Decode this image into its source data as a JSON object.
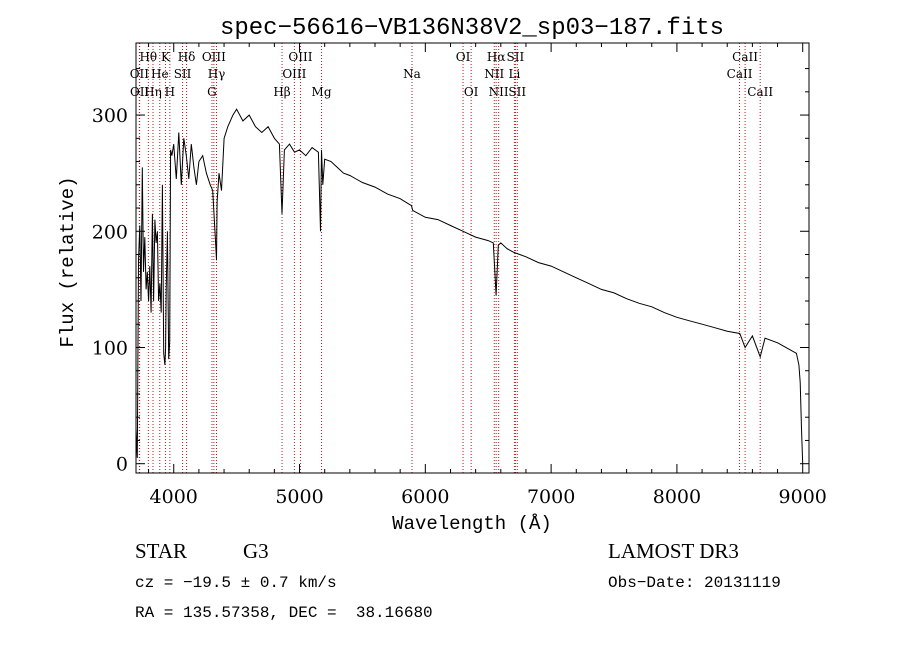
{
  "chart_data": {
    "type": "line",
    "title": "spec−56616−VB136N38V2_sp03−187.fits",
    "xlabel": "Wavelength (Å)",
    "ylabel": "Flux (relative)",
    "xlim": [
      3700,
      9050
    ],
    "ylim": [
      -8,
      362
    ],
    "xticks": [
      4000,
      5000,
      6000,
      7000,
      8000,
      9000
    ],
    "xtick_labels": [
      "4000",
      "5000",
      "6000",
      "7000",
      "8000",
      "9000"
    ],
    "yticks": [
      0,
      100,
      200,
      300
    ],
    "ytick_labels": [
      "0",
      "100",
      "200",
      "300"
    ],
    "series": [
      {
        "name": "flux",
        "x": [
          3700,
          3710,
          3720,
          3730,
          3740,
          3750,
          3760,
          3770,
          3780,
          3790,
          3800,
          3810,
          3820,
          3830,
          3840,
          3850,
          3860,
          3870,
          3880,
          3890,
          3900,
          3910,
          3920,
          3930,
          3935,
          3940,
          3950,
          3960,
          3968,
          3975,
          3985,
          4000,
          4020,
          4040,
          4060,
          4080,
          4100,
          4120,
          4140,
          4160,
          4180,
          4200,
          4230,
          4260,
          4290,
          4310,
          4330,
          4340,
          4345,
          4360,
          4380,
          4400,
          4430,
          4470,
          4500,
          4550,
          4600,
          4650,
          4700,
          4750,
          4800,
          4840,
          4861,
          4880,
          4920,
          4960,
          5000,
          5050,
          5100,
          5150,
          5167,
          5175,
          5185,
          5200,
          5250,
          5300,
          5350,
          5400,
          5450,
          5500,
          5600,
          5700,
          5800,
          5890,
          5900,
          6000,
          6100,
          6200,
          6300,
          6400,
          6500,
          6540,
          6563,
          6580,
          6600,
          6650,
          6700,
          6750,
          6800,
          6900,
          7000,
          7100,
          7200,
          7300,
          7400,
          7500,
          7600,
          7700,
          7800,
          7900,
          8000,
          8100,
          8200,
          8300,
          8400,
          8500,
          8542,
          8600,
          8662,
          8700,
          8800,
          8900,
          8950,
          8970,
          8980,
          8990,
          9000
        ],
        "values": [
          30,
          5,
          175,
          205,
          140,
          255,
          165,
          195,
          150,
          165,
          140,
          170,
          130,
          215,
          140,
          210,
          190,
          200,
          140,
          155,
          130,
          240,
          95,
          85,
          100,
          150,
          200,
          90,
          105,
          270,
          265,
          275,
          245,
          285,
          240,
          280,
          265,
          245,
          275,
          255,
          240,
          260,
          265,
          250,
          240,
          235,
          195,
          175,
          225,
          250,
          235,
          280,
          290,
          300,
          305,
          295,
          300,
          290,
          285,
          290,
          280,
          275,
          215,
          270,
          275,
          268,
          270,
          265,
          272,
          268,
          200,
          270,
          240,
          262,
          260,
          255,
          250,
          248,
          245,
          242,
          238,
          232,
          228,
          222,
          218,
          212,
          210,
          205,
          200,
          195,
          192,
          190,
          145,
          188,
          190,
          185,
          182,
          180,
          178,
          173,
          170,
          165,
          160,
          155,
          150,
          147,
          142,
          138,
          135,
          130,
          126,
          123,
          120,
          117,
          114,
          112,
          100,
          110,
          92,
          108,
          104,
          98,
          95,
          85,
          70,
          30,
          0
        ]
      }
    ],
    "line_markers": [
      {
        "name": "Hθ",
        "wavelength": 3798
      },
      {
        "name": "OII",
        "wavelength": 3727
      },
      {
        "name": "OII",
        "wavelength": 3729
      },
      {
        "name": "Hη",
        "wavelength": 3835
      },
      {
        "name": "He",
        "wavelength": 3889
      },
      {
        "name": "K",
        "wavelength": 3934
      },
      {
        "name": "H",
        "wavelength": 3969
      },
      {
        "name": "SII",
        "wavelength": 4070
      },
      {
        "name": "Hδ",
        "wavelength": 4102
      },
      {
        "name": "OIII",
        "wavelength": 4319
      },
      {
        "name": "Hγ",
        "wavelength": 4340
      },
      {
        "name": "G",
        "wavelength": 4304
      },
      {
        "name": "Hβ",
        "wavelength": 4861
      },
      {
        "name": "OIII",
        "wavelength": 4959
      },
      {
        "name": "OIII",
        "wavelength": 5007
      },
      {
        "name": "Mg",
        "wavelength": 5175
      },
      {
        "name": "Na",
        "wavelength": 5894
      },
      {
        "name": "OI",
        "wavelength": 6300
      },
      {
        "name": "OI",
        "wavelength": 6364
      },
      {
        "name": "NII",
        "wavelength": 6548
      },
      {
        "name": "Hα",
        "wavelength": 6563
      },
      {
        "name": "NII",
        "wavelength": 6583
      },
      {
        "name": "SII",
        "wavelength": 6716
      },
      {
        "name": "Li",
        "wavelength": 6708
      },
      {
        "name": "SII",
        "wavelength": 6731
      },
      {
        "name": "CaII",
        "wavelength": 8498
      },
      {
        "name": "CaII",
        "wavelength": 8542
      },
      {
        "name": "CaII",
        "wavelength": 8662
      }
    ],
    "marker_labels": {
      "row1": [
        "Hθ",
        "K",
        "Hδ",
        "OIII",
        "OIII",
        "OI",
        "Hα",
        "SII",
        "CaII"
      ],
      "row2": [
        "OII",
        "He",
        "SII",
        "Hγ",
        "OIII",
        "Na",
        "NII",
        "Li",
        "CaII"
      ],
      "row3": [
        "OII",
        "Hη",
        "H",
        "G",
        "Hβ",
        "Mg",
        "OI",
        "NII",
        "SII",
        "CaII"
      ]
    }
  },
  "info": {
    "object_class": "STAR",
    "subclass": "G3",
    "survey": "LAMOST DR3",
    "redshift": "cz = −19.5 ± 0.7 km/s",
    "obs_date": "Obs−Date: 20131119",
    "coords": "RA = 135.57358, DEC =  38.16680"
  }
}
